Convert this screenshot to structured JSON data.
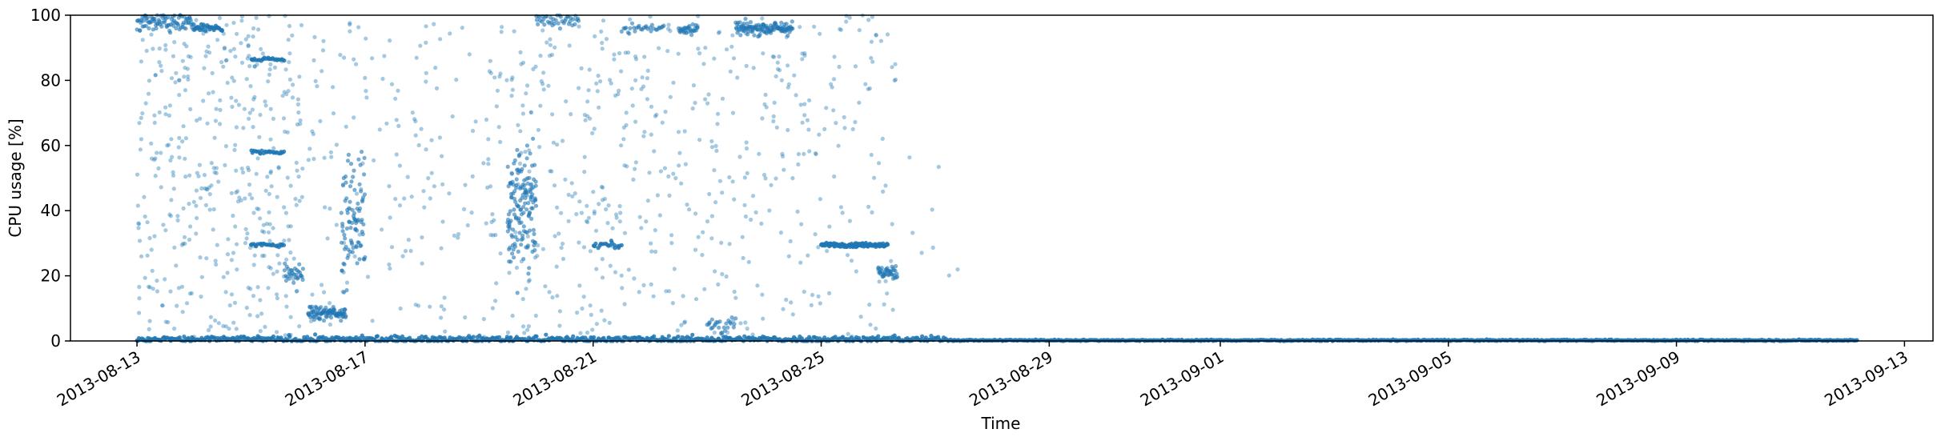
{
  "chart_data": {
    "type": "scatter",
    "title": "",
    "xlabel": "Time",
    "ylabel": "CPU usage [%]",
    "x_axis_type": "date",
    "xlim": [
      "2013-08-11T20:00",
      "2013-09-13T12:00"
    ],
    "ylim": [
      0,
      100
    ],
    "x_ticks": [
      "2013-08-13",
      "2013-08-17",
      "2013-08-21",
      "2013-08-25",
      "2013-08-29",
      "2013-09-01",
      "2013-09-05",
      "2013-09-09",
      "2013-09-13"
    ],
    "y_ticks": [
      0,
      20,
      40,
      60,
      80,
      100
    ],
    "grid": false,
    "legend": false,
    "marker_color": "#1f77b4",
    "marker_alpha": 0.4,
    "clusters": [
      {
        "start": "2013-08-13T00:00",
        "end": "2013-08-14T00:00",
        "value": 97.5,
        "spread": 1.5,
        "n": 90
      },
      {
        "start": "2013-08-14T00:00",
        "end": "2013-08-14T12:00",
        "value": 96,
        "spread": 0.5,
        "n": 30
      },
      {
        "start": "2013-08-15T00:00",
        "end": "2013-08-15T14:00",
        "value": 86.5,
        "spread": 0.3,
        "n": 25
      },
      {
        "start": "2013-08-15T00:00",
        "end": "2013-08-15T14:00",
        "value": 58,
        "spread": 0.3,
        "n": 25
      },
      {
        "start": "2013-08-15T00:00",
        "end": "2013-08-15T14:00",
        "value": 29.5,
        "spread": 0.3,
        "n": 25
      },
      {
        "start": "2013-08-15T14:00",
        "end": "2013-08-15T22:00",
        "value": 20.5,
        "spread": 1.5,
        "n": 30
      },
      {
        "start": "2013-08-16T00:00",
        "end": "2013-08-16T16:00",
        "value": 8.5,
        "spread": 1,
        "n": 90
      },
      {
        "start": "2013-08-16T14:00",
        "end": "2013-08-17T00:00",
        "value": 38,
        "spread": 9,
        "n": 90
      },
      {
        "start": "2013-08-19T12:00",
        "end": "2013-08-20T00:00",
        "value": 42,
        "spread": 11,
        "n": 150
      },
      {
        "start": "2013-08-20T00:00",
        "end": "2013-08-20T18:00",
        "value": 98.5,
        "spread": 1,
        "n": 40
      },
      {
        "start": "2013-08-21T00:00",
        "end": "2013-08-21T12:00",
        "value": 29.5,
        "spread": 0.5,
        "n": 20
      },
      {
        "start": "2013-08-21T12:00",
        "end": "2013-08-22T06:00",
        "value": 96,
        "spread": 0.8,
        "n": 30
      },
      {
        "start": "2013-08-22T12:00",
        "end": "2013-08-22T20:00",
        "value": 96,
        "spread": 1,
        "n": 30
      },
      {
        "start": "2013-08-23T00:00",
        "end": "2013-08-23T12:00",
        "value": 5,
        "spread": 1.5,
        "n": 25
      },
      {
        "start": "2013-08-23T12:00",
        "end": "2013-08-24T12:00",
        "value": 96,
        "spread": 1,
        "n": 120
      },
      {
        "start": "2013-08-25T00:00",
        "end": "2013-08-26T04:00",
        "value": 29.5,
        "spread": 0.3,
        "n": 120
      },
      {
        "start": "2013-08-26T00:00",
        "end": "2013-08-26T08:00",
        "value": 21,
        "spread": 1,
        "n": 40
      },
      {
        "start": "2013-08-13T00:00",
        "end": "2013-08-27T08:00",
        "value": 0.5,
        "spread": 0.5,
        "n": 700
      },
      {
        "start": "2013-08-27T08:00",
        "end": "2013-09-12T04:00",
        "value": 0.2,
        "spread": 0.1,
        "n": 800
      }
    ],
    "scatter_ranges": [
      {
        "start": "2013-08-13T00:00",
        "end": "2013-08-15T22:00",
        "ymin": 0,
        "ymax": 100,
        "n": 420
      },
      {
        "start": "2013-08-16T00:00",
        "end": "2013-08-19T12:00",
        "ymin": 0,
        "ymax": 100,
        "n": 180
      },
      {
        "start": "2013-08-19T12:00",
        "end": "2013-08-21T12:00",
        "ymin": 0,
        "ymax": 100,
        "n": 180
      },
      {
        "start": "2013-08-21T12:00",
        "end": "2013-08-24T12:00",
        "ymin": 0,
        "ymax": 100,
        "n": 220
      },
      {
        "start": "2013-08-24T12:00",
        "end": "2013-08-26T08:00",
        "ymin": 0,
        "ymax": 100,
        "n": 110
      },
      {
        "start": "2013-08-26T08:00",
        "end": "2013-08-27T12:00",
        "ymin": 0,
        "ymax": 60,
        "n": 8
      }
    ]
  }
}
